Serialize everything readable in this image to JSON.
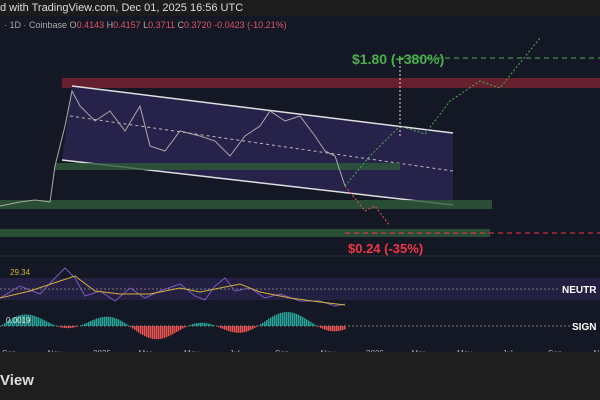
{
  "header": {
    "snapshot_text": "d with TradingView.com, Dec 01, 2025 16:56 UTC"
  },
  "legend": {
    "symbol": "· 1D · Coinbase",
    "o_label": "O",
    "o": "0.4143",
    "h_label": "H",
    "h": "0.4157",
    "l_label": "L",
    "l": "0.3711",
    "c_label": "C",
    "c": "0.3720",
    "change": "-0.0423 (-10.21%)"
  },
  "targets": {
    "up": "$1.80 (+380%)",
    "down": "$0.24 (-35%)"
  },
  "rsi": {
    "value": "29.34",
    "zone_label": "NEUTR"
  },
  "macd": {
    "value": "0.0019",
    "signal_label": "SIGN"
  },
  "x_axis": [
    "Sep",
    "Nov",
    "2025",
    "Mar",
    "May",
    "Jul",
    "Sep",
    "Nov",
    "2026",
    "Mar",
    "May",
    "Jul",
    "Sep",
    "N"
  ],
  "footer": {
    "brand": "View"
  },
  "colors": {
    "bull": "#26a69a",
    "bear": "#ef5350",
    "rsi": "#7e57c2",
    "target_up": "#4caf50",
    "target_down": "#f23645"
  }
}
